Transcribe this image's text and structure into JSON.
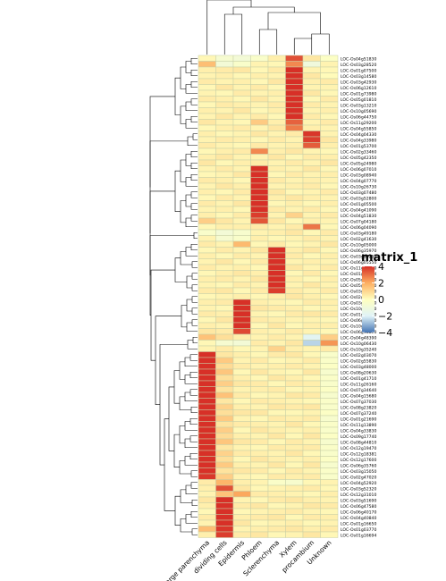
{
  "chart_data": {
    "type": "heatmap",
    "title": "",
    "xlabel": "",
    "ylabel": "",
    "columns": [
      "Large parenchyma",
      "dividing cells",
      "Epidermis",
      "Phloem",
      "Sclerenchyma",
      "Xylem",
      "procambium",
      "Unknown"
    ],
    "rows": [
      "LOC-Os04g51830",
      "LOC-Os03g28520",
      "LOC-Os01g07500",
      "LOC-Os03g14580",
      "LOC-Os03g42930",
      "LOC-Os06g12610",
      "LOC-Os01g73980",
      "LOC-Os05g01810",
      "LOC-Os03g13210",
      "LOC-Os10g05690",
      "LOC-Os06g44750",
      "LOC-Os11g29200",
      "LOC-Os04g55850",
      "LOC-Os04g04330",
      "LOC-Os04g33980",
      "LOC-Os01g53700",
      "LOC-Os02g33460",
      "LOC-Os05g42350",
      "LOC-Os05g24980",
      "LOC-Os06g07010",
      "LOC-Os03g08940",
      "LOC-Os04g07770",
      "LOC-Os10g26730",
      "LOC-Os03g07480",
      "LOC-Os03g52800",
      "LOC-Os01g05500",
      "LOC-Os04g41090",
      "LOC-Os04g51830",
      "LOC-Os07g04180",
      "LOC-Os06g04090",
      "LOC-Os03g49180",
      "LOC-Os02g41630",
      "LOC-Os10g05000",
      "LOC-Os06g35970",
      "LOC-Os03g30250",
      "LOC-Os06g05550",
      "LOC-Os11g02400",
      "LOC-Os01g45274",
      "LOC-Os05g49850",
      "LOC-Os05g50100",
      "LOC-Os03g28100",
      "LOC-Os02g56920",
      "LOC-Os03g58360",
      "LOC-Os10g33370",
      "LOC-Os01g60740",
      "LOC-Os06g19930",
      "LOC-Os10g42490",
      "LOC-Os06g08820",
      "LOC-Os04g48390",
      "LOC-Os10g06430",
      "LOC-Os10g35240",
      "LOC-Os02g03070",
      "LOC-Os02g55830",
      "LOC-Os03g48000",
      "LOC-Os08g20630",
      "LOC-Os01g41710",
      "LOC-Os11g26160",
      "LOC-Os07g34640",
      "LOC-Os04g15680",
      "LOC-Os07g37030",
      "LOC-Os08g23820",
      "LOC-Os07g37240",
      "LOC-Os01g21690",
      "LOC-Os11g13890",
      "LOC-Os04g33830",
      "LOC-Os09g17740",
      "LOC-Os08g44810",
      "LOC-Os12g19470",
      "LOC-Os12g18381",
      "LOC-Os12g17600",
      "LOC-Os06g35760",
      "LOC-Os03g15050",
      "LOC-Os02g47020",
      "LOC-Os04g52920",
      "LOC-Os03g52320",
      "LOC-Os12g31010",
      "LOC-Os03g51690",
      "LOC-Os06g47580",
      "LOC-Os06g40170",
      "LOC-Os04g40840",
      "LOC-Os01g16650",
      "LOC-Os01g03770",
      "LOC-Os01g16694"
    ],
    "values": [
      [
        0.2,
        -0.6,
        -0.8,
        -0.4,
        0.4,
        3.5,
        0.6,
        -0.2
      ],
      [
        1.6,
        -0.8,
        -0.4,
        0.3,
        0.2,
        2.6,
        -1,
        0.3
      ],
      [
        0.4,
        0.5,
        0.6,
        0.2,
        0.5,
        4,
        0.3,
        0.2
      ],
      [
        0.3,
        0.4,
        0.2,
        0.4,
        0.3,
        4.1,
        0.6,
        0.1
      ],
      [
        0.5,
        0.3,
        0.4,
        0.2,
        0.6,
        4,
        0.4,
        0.5
      ],
      [
        0.2,
        0.6,
        0.3,
        0.5,
        0.2,
        4.2,
        0.3,
        0.3
      ],
      [
        0.3,
        0.2,
        0.5,
        0.3,
        0.4,
        4.1,
        0.6,
        0.2
      ],
      [
        0.5,
        0.4,
        0.2,
        0.6,
        0.3,
        4,
        0.2,
        0.5
      ],
      [
        0.2,
        0.5,
        0.4,
        0.3,
        0.5,
        4.2,
        0.5,
        0.3
      ],
      [
        0.4,
        0.3,
        0.6,
        0.2,
        0.4,
        4.1,
        0.3,
        0.4
      ],
      [
        0.3,
        0.6,
        0.3,
        0.5,
        0.2,
        4,
        0.5,
        0.2
      ],
      [
        0.6,
        0.3,
        0.2,
        1.3,
        0.4,
        3.2,
        0.3,
        0.5
      ],
      [
        0.2,
        0.4,
        0.5,
        0.3,
        0.6,
        2.8,
        0.4,
        0.3
      ],
      [
        0.4,
        0.2,
        0.3,
        0.6,
        0.3,
        0.5,
        3.9,
        0.3
      ],
      [
        0.3,
        0.5,
        0.4,
        0.2,
        0.5,
        0.3,
        3.8,
        0.6
      ],
      [
        0.5,
        0.3,
        0.2,
        0.5,
        0.3,
        0.4,
        3.3,
        0.4
      ],
      [
        0.2,
        0.4,
        0.5,
        2.6,
        0.4,
        0.6,
        0.3,
        0.2
      ],
      [
        0.4,
        0.6,
        0.3,
        0.3,
        0.6,
        0.2,
        0.5,
        0.4
      ],
      [
        0.6,
        0.2,
        0.4,
        0.5,
        0.3,
        0.5,
        0.3,
        0.6
      ],
      [
        0.3,
        0.5,
        0.3,
        4,
        0.4,
        0.3,
        0.6,
        0.2
      ],
      [
        0.2,
        0.3,
        0.6,
        4.1,
        0.2,
        0.5,
        0.3,
        0.4
      ],
      [
        0.5,
        0.4,
        0.2,
        4,
        0.5,
        0.3,
        0.4,
        0.3
      ],
      [
        0.3,
        0.6,
        0.4,
        4.2,
        0.3,
        0.4,
        0.5,
        0.2
      ],
      [
        0.4,
        0.2,
        0.5,
        4.1,
        0.6,
        0.2,
        0.3,
        0.5
      ],
      [
        0.2,
        0.5,
        0.3,
        4,
        0.4,
        0.6,
        0.4,
        0.3
      ],
      [
        0.5,
        0.3,
        0.6,
        4.2,
        0.2,
        0.4,
        0.2,
        0.4
      ],
      [
        0.3,
        0.4,
        0.2,
        4.1,
        0.5,
        0.3,
        0.5,
        0.2
      ],
      [
        0.4,
        0.2,
        0.5,
        3.8,
        0.3,
        1.1,
        0.3,
        0.5
      ],
      [
        1.2,
        0.6,
        0.3,
        3.4,
        0.6,
        0.2,
        0.4,
        0.3
      ],
      [
        0.2,
        0.4,
        0.4,
        0.5,
        0.3,
        0.5,
        2.9,
        0.2
      ],
      [
        -0.4,
        -0.8,
        -0.5,
        0.3,
        0.4,
        0.6,
        0.2,
        0.5
      ],
      [
        0.3,
        -0.6,
        -0.4,
        0.4,
        0.2,
        0.3,
        0.5,
        0.3
      ],
      [
        0.5,
        0.3,
        1.7,
        0.2,
        0.5,
        0.2,
        0.3,
        0.6
      ],
      [
        0.2,
        0.5,
        0.3,
        0.6,
        4,
        0.4,
        0.6,
        0.2
      ],
      [
        0.4,
        0.2,
        0.5,
        0.3,
        4.1,
        0.5,
        0.2,
        0.4
      ],
      [
        0.3,
        0.6,
        0.2,
        0.5,
        4,
        0.3,
        0.4,
        0.3
      ],
      [
        0.5,
        0.3,
        0.4,
        0.2,
        4.2,
        0.6,
        0.3,
        0.5
      ],
      [
        0.2,
        0.4,
        0.6,
        0.4,
        4,
        0.2,
        0.5,
        0.2
      ],
      [
        0.4,
        0.5,
        0.3,
        0.6,
        4.1,
        0.4,
        0.2,
        0.4
      ],
      [
        0.3,
        0.2,
        0.5,
        0.3,
        4,
        0.3,
        0.6,
        0.3
      ],
      [
        0.5,
        0.6,
        0.2,
        0.5,
        3.8,
        0.5,
        0.3,
        0.5
      ],
      [
        0.2,
        0.3,
        0.4,
        0.2,
        0.4,
        0.6,
        0.4,
        0.2
      ],
      [
        0.4,
        0.5,
        4,
        0.4,
        0.3,
        0.2,
        0.5,
        0.4
      ],
      [
        0.3,
        0.2,
        4.1,
        0.6,
        0.5,
        0.4,
        0.2,
        0.3
      ],
      [
        0.5,
        0.4,
        4.2,
        0.3,
        0.2,
        0.5,
        0.6,
        0.5
      ],
      [
        0.2,
        0.6,
        4,
        0.5,
        0.4,
        0.3,
        0.3,
        0.2
      ],
      [
        0.4,
        0.3,
        4.1,
        0.2,
        0.6,
        0.2,
        0.4,
        0.4
      ],
      [
        0.6,
        0.5,
        3.6,
        0.4,
        0.3,
        0.5,
        0.3,
        0.2
      ],
      [
        1.5,
        0.8,
        0.4,
        0.3,
        0.5,
        0.3,
        -1.8,
        1.2
      ],
      [
        0.2,
        -0.6,
        -0.8,
        0.5,
        0.3,
        0.6,
        -2.5,
        2.4
      ],
      [
        0.3,
        0.5,
        0.2,
        0.3,
        1.1,
        0.4,
        0.3,
        0.5
      ],
      [
        4,
        0.6,
        0.4,
        0.2,
        0.5,
        0.6,
        0.2,
        -0.4
      ],
      [
        4.1,
        1.3,
        0.3,
        0.5,
        0.2,
        0.3,
        0.5,
        -0.3
      ],
      [
        4,
        0.9,
        0.5,
        0.3,
        0.4,
        0.5,
        0.3,
        -0.2
      ],
      [
        4.2,
        1.4,
        0.2,
        0.6,
        0.3,
        0.2,
        0.6,
        -0.5
      ],
      [
        4,
        0.8,
        0.4,
        0.2,
        0.6,
        0.4,
        0.2,
        -0.3
      ],
      [
        4.1,
        1.2,
        0.6,
        0.5,
        0.2,
        0.5,
        0.4,
        -0.4
      ],
      [
        4,
        0.7,
        0.3,
        0.4,
        0.5,
        0.2,
        0.3,
        -0.2
      ],
      [
        4.2,
        1.5,
        0.5,
        0.2,
        0.3,
        0.6,
        0.5,
        -0.5
      ],
      [
        4.1,
        0.6,
        0.2,
        0.5,
        0.4,
        0.3,
        0.2,
        -0.3
      ],
      [
        4,
        1.1,
        0.4,
        0.3,
        0.6,
        0.5,
        0.6,
        -0.4
      ],
      [
        4.2,
        0.8,
        0.6,
        0.6,
        0.2,
        0.2,
        0.3,
        -0.2
      ],
      [
        4.1,
        1.3,
        0.3,
        0.2,
        0.5,
        0.4,
        0.5,
        -0.5
      ],
      [
        4,
        0.7,
        0.5,
        0.4,
        0.3,
        0.6,
        0.2,
        -0.3
      ],
      [
        4.2,
        1.2,
        0.2,
        0.6,
        0.4,
        0.3,
        0.4,
        -0.4
      ],
      [
        4.1,
        0.9,
        0.4,
        0.3,
        0.6,
        0.2,
        0.6,
        -0.2
      ],
      [
        4,
        1.4,
        0.6,
        0.5,
        0.2,
        0.5,
        0.3,
        -0.5
      ],
      [
        4.2,
        0.6,
        0.3,
        0.2,
        0.5,
        0.4,
        0.5,
        -0.3
      ],
      [
        4.1,
        1.1,
        0.5,
        0.4,
        0.3,
        0.6,
        0.2,
        -0.4
      ],
      [
        4,
        0.8,
        0.2,
        0.6,
        0.4,
        0.3,
        0.4,
        -0.2
      ],
      [
        4.2,
        1.3,
        0.4,
        0.3,
        0.6,
        0.2,
        0.6,
        -0.5
      ],
      [
        4.1,
        0.7,
        0.6,
        0.5,
        0.2,
        0.5,
        0.3,
        -0.3
      ],
      [
        3.9,
        1.2,
        0.3,
        0.2,
        0.5,
        0.4,
        0.5,
        -0.4
      ],
      [
        0.5,
        1.8,
        0.4,
        0.3,
        -0.3,
        -0.5,
        0.2,
        0.3
      ],
      [
        0.4,
        3.5,
        0.6,
        0.2,
        0.3,
        0.4,
        0.5,
        0.2
      ],
      [
        0.3,
        1.5,
        2.1,
        0.5,
        0.4,
        0.3,
        0.2,
        0.4
      ],
      [
        0.6,
        4,
        0.3,
        0.2,
        0.5,
        0.6,
        0.4,
        0.3
      ],
      [
        0.4,
        4.1,
        0.5,
        0.6,
        0.2,
        0.3,
        0.6,
        0.5
      ],
      [
        0.2,
        4.2,
        0.2,
        0.3,
        0.4,
        0.5,
        0.3,
        0.2
      ],
      [
        0.5,
        4,
        0.4,
        0.5,
        0.6,
        0.2,
        0.5,
        0.4
      ],
      [
        0.3,
        4.1,
        0.6,
        0.2,
        0.3,
        0.4,
        0.2,
        0.3
      ],
      [
        1.6,
        3.9,
        0.3,
        0.4,
        0.5,
        0.6,
        0.4,
        0.5
      ],
      [
        0.4,
        3.8,
        0.5,
        0.6,
        0.2,
        0.3,
        0.6,
        0.2
      ]
    ],
    "legend": {
      "title": "matrix_1",
      "ticks": [
        4,
        2,
        0,
        -2,
        -4
      ],
      "tick_labels": [
        "4",
        "2",
        "0",
        "−2",
        "−4"
      ],
      "range": [
        -4,
        4
      ],
      "colors": {
        "low": "#4575b4",
        "mid_low": "#e0f3f8",
        "mid": "#ffffbf",
        "mid_high": "#fdae61",
        "high": "#d73027"
      }
    },
    "grid": true,
    "legend_position": "right",
    "row_dendrogram": "left",
    "column_dendrogram": "top"
  }
}
